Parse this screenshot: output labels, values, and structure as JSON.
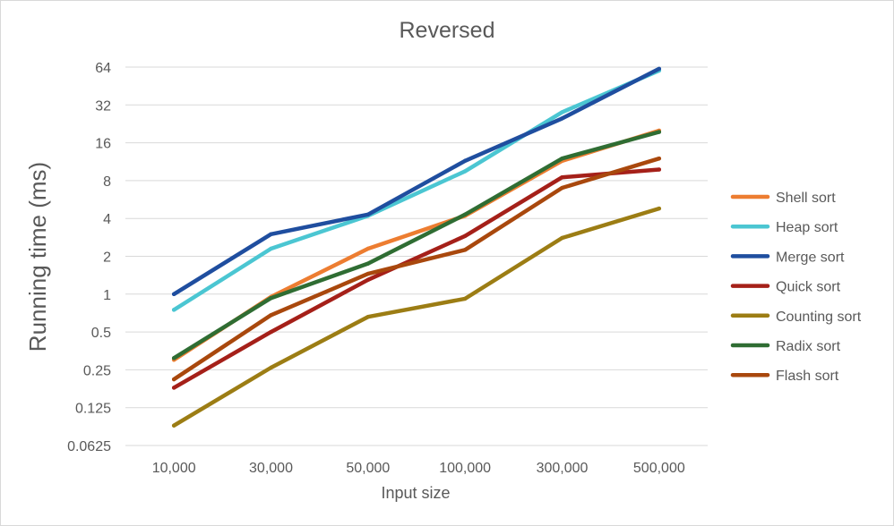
{
  "chart_data": {
    "type": "line",
    "title": "Reversed",
    "xlabel": "Input size",
    "ylabel": "Running time (ms)",
    "y_scale": "log2",
    "ylim": [
      0.0625,
      64
    ],
    "grid": true,
    "legend_position": "right",
    "categories": [
      "10,000",
      "30,000",
      "50,000",
      "100,000",
      "300,000",
      "500,000"
    ],
    "y_ticks": [
      0.0625,
      0.125,
      0.25,
      0.5,
      1,
      2,
      4,
      8,
      16,
      32,
      64
    ],
    "y_tick_labels": [
      "0.0625",
      "0.125",
      "0.25",
      "0.5",
      "1",
      "2",
      "4",
      "8",
      "16",
      "32",
      "64"
    ],
    "series": [
      {
        "name": "Shell sort",
        "color": "#ED7D31",
        "values": [
          0.3,
          0.95,
          2.3,
          4.2,
          11.5,
          20
        ]
      },
      {
        "name": "Heap sort",
        "color": "#4BC6D2",
        "values": [
          0.75,
          2.3,
          4.2,
          9.5,
          28,
          60
        ]
      },
      {
        "name": "Merge sort",
        "color": "#1F4E9F",
        "values": [
          1,
          3,
          4.3,
          11.5,
          25,
          62
        ]
      },
      {
        "name": "Quick sort",
        "color": "#A52019",
        "values": [
          0.18,
          0.5,
          1.3,
          2.9,
          8.5,
          9.8
        ]
      },
      {
        "name": "Counting sort",
        "color": "#9C7D14",
        "values": [
          0.09,
          0.26,
          0.66,
          0.92,
          2.8,
          4.8
        ]
      },
      {
        "name": "Radix sort",
        "color": "#2F6D33",
        "values": [
          0.31,
          0.93,
          1.75,
          4.3,
          12,
          19.5
        ]
      },
      {
        "name": "Flash sort",
        "color": "#A9480D",
        "values": [
          0.21,
          0.68,
          1.45,
          2.25,
          7,
          12
        ]
      }
    ]
  }
}
